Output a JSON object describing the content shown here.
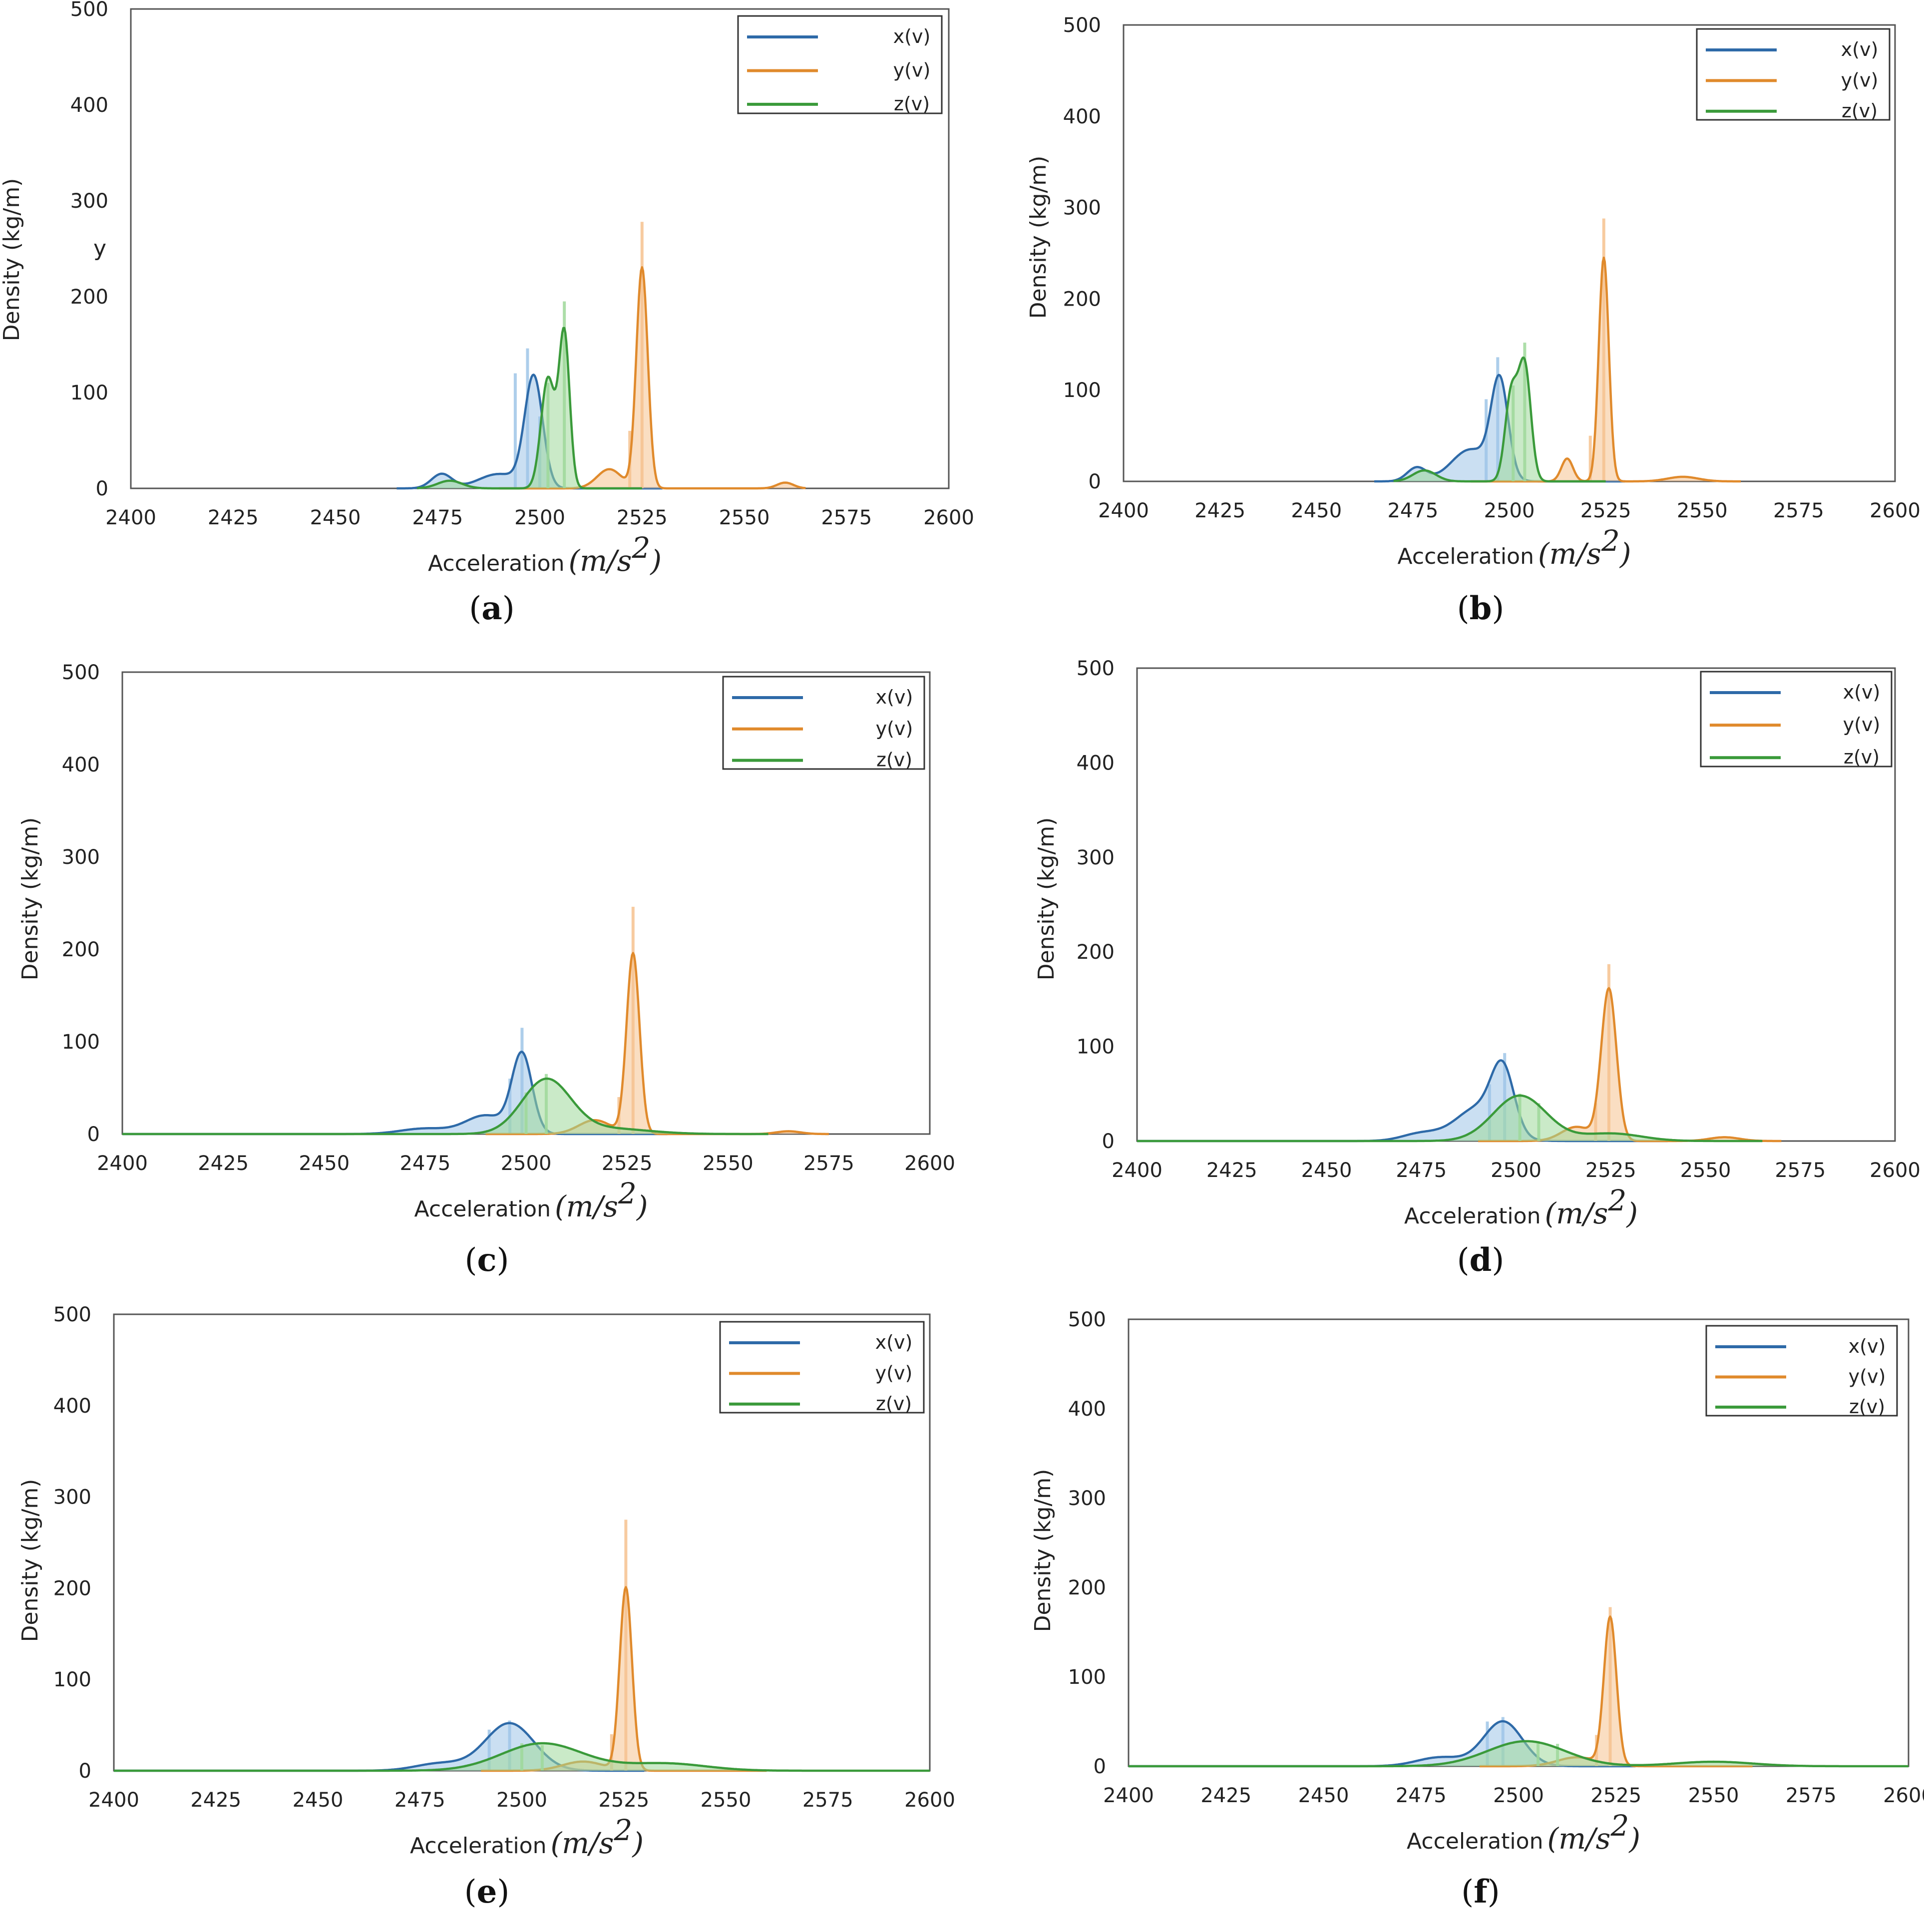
{
  "chart_data": [
    {
      "panel": "a",
      "type": "area",
      "title": "",
      "xlabel": "Acceleration",
      "xunit": {
        "base": "(m/s",
        "sup": "2",
        "close": ")"
      },
      "ylabel": "Density  (kg/m)",
      "stray_label": "y",
      "xlim": [
        2400,
        2600
      ],
      "ylim": [
        0,
        500
      ],
      "xticks": [
        2400,
        2425,
        2450,
        2475,
        2500,
        2525,
        2550,
        2575,
        2600
      ],
      "yticks": [
        0,
        100,
        200,
        300,
        400,
        500
      ],
      "legend": {
        "position": "top-right",
        "entries": [
          "x(v)",
          "y(v)",
          "z(v)"
        ]
      },
      "series": [
        {
          "name": "x(v)",
          "color": "#2e6aa8",
          "fill": "#9fc5e8",
          "peaks": [
            [
              2476,
              15,
              2.5
            ],
            [
              2490,
              15,
              5
            ],
            [
              2498.5,
              115,
              2.2
            ]
          ],
          "range": [
            2465,
            2530
          ],
          "hist": [
            [
              2494,
              120
            ],
            [
              2497,
              146
            ],
            [
              2500,
              75
            ]
          ]
        },
        {
          "name": "y(v)",
          "color": "#e08a2c",
          "fill": "#f6c28f",
          "peaks": [
            [
              2517,
              20,
              3
            ],
            [
              2525,
              230,
              1.4
            ],
            [
              2560,
              6,
              2
            ]
          ],
          "range": [
            2490,
            2565
          ],
          "hist": [
            [
              2525,
              278
            ],
            [
              2522,
              60
            ]
          ]
        },
        {
          "name": "z(v)",
          "color": "#3a9a3a",
          "fill": "#9fd89a",
          "peaks": [
            [
              2478,
              8,
              3
            ],
            [
              2502,
              115,
              1.7
            ],
            [
              2506,
              160,
              1.3
            ]
          ],
          "range": [
            2470,
            2525
          ],
          "hist": [
            [
              2502,
              110
            ],
            [
              2506,
              195
            ]
          ]
        }
      ]
    },
    {
      "panel": "b",
      "type": "area",
      "title": "",
      "xlabel": "Acceleration",
      "xunit": {
        "base": "(m/s",
        "sup": "2",
        "close": ")"
      },
      "ylabel": "Density  (kg/m)",
      "xlim": [
        2400,
        2600
      ],
      "ylim": [
        0,
        500
      ],
      "xticks": [
        2400,
        2425,
        2450,
        2475,
        2500,
        2525,
        2550,
        2575,
        2600
      ],
      "yticks": [
        0,
        100,
        200,
        300,
        400,
        500
      ],
      "legend": {
        "position": "top-right",
        "entries": [
          "x(v)",
          "y(v)",
          "z(v)"
        ]
      },
      "series": [
        {
          "name": "x(v)",
          "color": "#2e6aa8",
          "fill": "#9fc5e8",
          "peaks": [
            [
              2476,
              15,
              2.5
            ],
            [
              2490,
              35,
              5
            ],
            [
              2497.5,
              105,
              2.2
            ]
          ],
          "range": [
            2465,
            2530
          ],
          "hist": [
            [
              2497,
              136
            ],
            [
              2494,
              90
            ]
          ]
        },
        {
          "name": "y(v)",
          "color": "#e08a2c",
          "fill": "#f6c28f",
          "peaks": [
            [
              2515,
              25,
              1.5
            ],
            [
              2524.5,
              245,
              1.3
            ],
            [
              2545,
              5,
              4
            ]
          ],
          "range": [
            2490,
            2560
          ],
          "hist": [
            [
              2524.5,
              288
            ],
            [
              2521,
              50
            ]
          ]
        },
        {
          "name": "z(v)",
          "color": "#3a9a3a",
          "fill": "#9fd89a",
          "peaks": [
            [
              2478,
              12,
              3
            ],
            [
              2500.5,
              95,
              1.6
            ],
            [
              2504,
              125,
              1.6
            ]
          ],
          "range": [
            2470,
            2525
          ],
          "hist": [
            [
              2501,
              105
            ],
            [
              2504,
              152
            ]
          ]
        }
      ]
    },
    {
      "panel": "c",
      "type": "area",
      "title": "",
      "xlabel": "Acceleration",
      "xunit": {
        "base": "(m/s",
        "sup": "2",
        "close": ")"
      },
      "ylabel": "Density  (kg/m)",
      "xlim": [
        2400,
        2600
      ],
      "ylim": [
        0,
        500
      ],
      "xticks": [
        2400,
        2425,
        2450,
        2475,
        2500,
        2525,
        2550,
        2575,
        2600
      ],
      "yticks": [
        0,
        100,
        200,
        300,
        400,
        500
      ],
      "legend": {
        "position": "top-right",
        "entries": [
          "x(v)",
          "y(v)",
          "z(v)"
        ]
      },
      "series": [
        {
          "name": "x(v)",
          "color": "#2e6aa8",
          "fill": "#9fc5e8",
          "peaks": [
            [
              2475,
              6,
              6
            ],
            [
              2490,
              20,
              5
            ],
            [
              2499,
              85,
              2.5
            ]
          ],
          "range": [
            2400,
            2535
          ],
          "hist": [
            [
              2499,
              115
            ],
            [
              2496,
              60
            ]
          ]
        },
        {
          "name": "y(v)",
          "color": "#e08a2c",
          "fill": "#f6c28f",
          "peaks": [
            [
              2517,
              15,
              4
            ],
            [
              2526.5,
              195,
              1.6
            ],
            [
              2565,
              3,
              3
            ]
          ],
          "range": [
            2490,
            2575
          ],
          "hist": [
            [
              2526.5,
              246
            ],
            [
              2523,
              40
            ]
          ]
        },
        {
          "name": "z(v)",
          "color": "#3a9a3a",
          "fill": "#9fd89a",
          "peaks": [
            [
              2505,
              58,
              6
            ],
            [
              2520,
              6,
              10
            ]
          ],
          "range": [
            2400,
            2560
          ],
          "hist": [
            [
              2505,
              65
            ],
            [
              2500,
              45
            ]
          ]
        }
      ]
    },
    {
      "panel": "d",
      "type": "area",
      "title": "",
      "xlabel": "Acceleration",
      "xunit": {
        "base": "(m/s",
        "sup": "2",
        "close": ")"
      },
      "ylabel": "Density  (kg/m)",
      "xlim": [
        2400,
        2600
      ],
      "ylim": [
        0,
        500
      ],
      "xticks": [
        2400,
        2425,
        2450,
        2475,
        2500,
        2525,
        2550,
        2575,
        2600
      ],
      "yticks": [
        0,
        100,
        200,
        300,
        400,
        500
      ],
      "legend": {
        "position": "top-right",
        "entries": [
          "x(v)",
          "y(v)",
          "z(v)"
        ]
      },
      "series": [
        {
          "name": "x(v)",
          "color": "#2e6aa8",
          "fill": "#9fc5e8",
          "peaks": [
            [
              2475,
              8,
              5
            ],
            [
              2490,
              35,
              6
            ],
            [
              2496.5,
              65,
              3
            ]
          ],
          "range": [
            2400,
            2540
          ],
          "hist": [
            [
              2497,
              93
            ],
            [
              2493,
              60
            ]
          ]
        },
        {
          "name": "y(v)",
          "color": "#e08a2c",
          "fill": "#f6c28f",
          "peaks": [
            [
              2516,
              15,
              4
            ],
            [
              2524.5,
              160,
              2
            ],
            [
              2555,
              4,
              4
            ]
          ],
          "range": [
            2490,
            2570
          ],
          "hist": [
            [
              2524.5,
              187
            ],
            [
              2521,
              40
            ]
          ]
        },
        {
          "name": "z(v)",
          "color": "#3a9a3a",
          "fill": "#9fd89a",
          "peaks": [
            [
              2501,
              48,
              7
            ],
            [
              2525,
              8,
              8
            ]
          ],
          "range": [
            2400,
            2565
          ],
          "hist": [
            [
              2501,
              50
            ],
            [
              2506,
              40
            ]
          ]
        }
      ]
    },
    {
      "panel": "e",
      "type": "area",
      "title": "",
      "xlabel": "Acceleration",
      "xunit": {
        "base": "(m/s",
        "sup": "2",
        "close": ")"
      },
      "ylabel": "Density  (kg/m)",
      "xlim": [
        2400,
        2600
      ],
      "ylim": [
        0,
        500
      ],
      "xticks": [
        2400,
        2425,
        2450,
        2475,
        2500,
        2525,
        2550,
        2575,
        2600
      ],
      "yticks": [
        0,
        100,
        200,
        300,
        400,
        500
      ],
      "legend": {
        "position": "top-right",
        "entries": [
          "x(v)",
          "y(v)",
          "z(v)"
        ]
      },
      "series": [
        {
          "name": "x(v)",
          "color": "#2e6aa8",
          "fill": "#9fc5e8",
          "peaks": [
            [
              2480,
              8,
              6
            ],
            [
              2497,
              52,
              6
            ]
          ],
          "range": [
            2400,
            2530
          ],
          "hist": [
            [
              2497,
              55
            ],
            [
              2492,
              45
            ]
          ]
        },
        {
          "name": "y(v)",
          "color": "#e08a2c",
          "fill": "#f6c28f",
          "peaks": [
            [
              2515,
              10,
              5
            ],
            [
              2525.5,
              200,
              1.5
            ]
          ],
          "range": [
            2490,
            2560
          ],
          "hist": [
            [
              2525.5,
              275
            ],
            [
              2522,
              40
            ]
          ]
        },
        {
          "name": "z(v)",
          "color": "#3a9a3a",
          "fill": "#9fd89a",
          "peaks": [
            [
              2505,
              30,
              10
            ],
            [
              2535,
              8,
              10
            ]
          ],
          "range": [
            2400,
            2600
          ],
          "hist": [
            [
              2500,
              30
            ],
            [
              2505,
              28
            ]
          ]
        }
      ]
    },
    {
      "panel": "f",
      "type": "area",
      "title": "",
      "xlabel": "Acceleration",
      "xunit": {
        "base": "(m/s",
        "sup": "2",
        "close": ")"
      },
      "ylabel": "Density  (kg/m)",
      "xlim": [
        2400,
        2600
      ],
      "ylim": [
        0,
        500
      ],
      "xticks": [
        2400,
        2425,
        2450,
        2475,
        2500,
        2525,
        2550,
        2575,
        2600
      ],
      "yticks": [
        0,
        100,
        200,
        300,
        400,
        500
      ],
      "legend": {
        "position": "top-right",
        "entries": [
          "x(v)",
          "y(v)",
          "z(v)"
        ]
      },
      "series": [
        {
          "name": "x(v)",
          "color": "#2e6aa8",
          "fill": "#9fc5e8",
          "peaks": [
            [
              2480,
              10,
              6
            ],
            [
              2496,
              50,
              5
            ]
          ],
          "range": [
            2400,
            2530
          ],
          "hist": [
            [
              2496,
              55
            ],
            [
              2492,
              50
            ]
          ]
        },
        {
          "name": "y(v)",
          "color": "#e08a2c",
          "fill": "#f6c28f",
          "peaks": [
            [
              2515,
              10,
              5
            ],
            [
              2523.5,
              165,
              1.6
            ]
          ],
          "range": [
            2490,
            2560
          ],
          "hist": [
            [
              2523.5,
              178
            ],
            [
              2520,
              35
            ]
          ]
        },
        {
          "name": "z(v)",
          "color": "#3a9a3a",
          "fill": "#9fd89a",
          "peaks": [
            [
              2502,
              28,
              10
            ],
            [
              2550,
              5,
              10
            ]
          ],
          "range": [
            2400,
            2600
          ],
          "hist": [
            [
              2505,
              28
            ],
            [
              2510,
              25
            ]
          ]
        }
      ]
    }
  ]
}
